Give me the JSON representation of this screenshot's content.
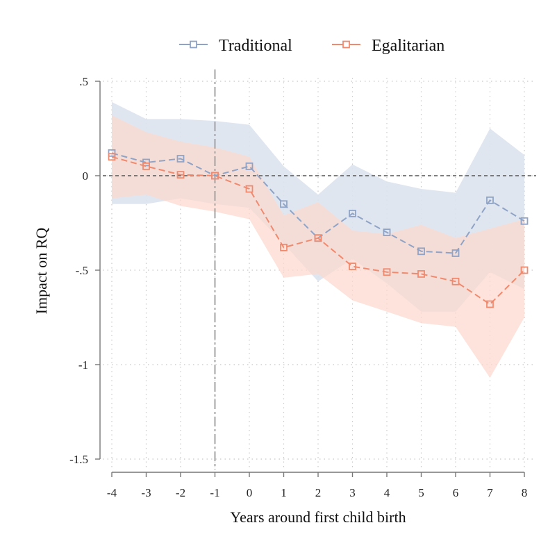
{
  "chart_data": {
    "type": "line",
    "xlabel": "Years around first child birth",
    "ylabel": "Impact on RQ",
    "x": [
      -4,
      -3,
      -2,
      -1,
      0,
      1,
      2,
      3,
      4,
      5,
      6,
      7,
      8
    ],
    "x_tick_labels": [
      "-4",
      "-3",
      "-2",
      "-1",
      "0",
      "1",
      "2",
      "3",
      "4",
      "5",
      "6",
      "7",
      "8"
    ],
    "y_ticks": [
      0.5,
      0,
      -0.5,
      -1,
      -1.5
    ],
    "y_tick_labels": [
      ".5",
      "0",
      "-.5",
      "-1",
      "-1.5"
    ],
    "xlim": [
      -4,
      8
    ],
    "ylim": [
      -1.5,
      0.5
    ],
    "grid": true,
    "legend_position": "top",
    "reference_lines": {
      "vertical_x": -1,
      "horizontal_y": 0
    },
    "series": [
      {
        "name": "Traditional",
        "color": "#8fa3c6",
        "band_color": "#dde3ee",
        "values": [
          0.12,
          0.07,
          0.09,
          0.0,
          0.05,
          -0.15,
          -0.33,
          -0.2,
          -0.3,
          -0.4,
          -0.41,
          -0.13,
          -0.24
        ],
        "ci_upper": [
          0.39,
          0.3,
          0.3,
          0.29,
          0.27,
          0.05,
          -0.1,
          0.06,
          -0.03,
          -0.07,
          -0.09,
          0.25,
          0.11
        ],
        "ci_lower": [
          -0.15,
          -0.15,
          -0.12,
          -0.15,
          -0.17,
          -0.36,
          -0.56,
          -0.44,
          -0.57,
          -0.72,
          -0.72,
          -0.51,
          -0.6
        ]
      },
      {
        "name": "Egalitarian",
        "color": "#f08a6f",
        "band_color": "#fcd9cf",
        "values": [
          0.1,
          0.05,
          0.005,
          0.0,
          -0.07,
          -0.38,
          -0.33,
          -0.48,
          -0.51,
          -0.52,
          -0.56,
          -0.68,
          -0.5
        ],
        "ci_upper": [
          0.32,
          0.23,
          0.18,
          0.15,
          0.1,
          -0.21,
          -0.14,
          -0.29,
          -0.31,
          -0.26,
          -0.33,
          -0.28,
          -0.23
        ],
        "ci_lower": [
          -0.12,
          -0.1,
          -0.16,
          -0.19,
          -0.23,
          -0.54,
          -0.52,
          -0.66,
          -0.72,
          -0.78,
          -0.8,
          -1.07,
          -0.75
        ]
      }
    ]
  }
}
